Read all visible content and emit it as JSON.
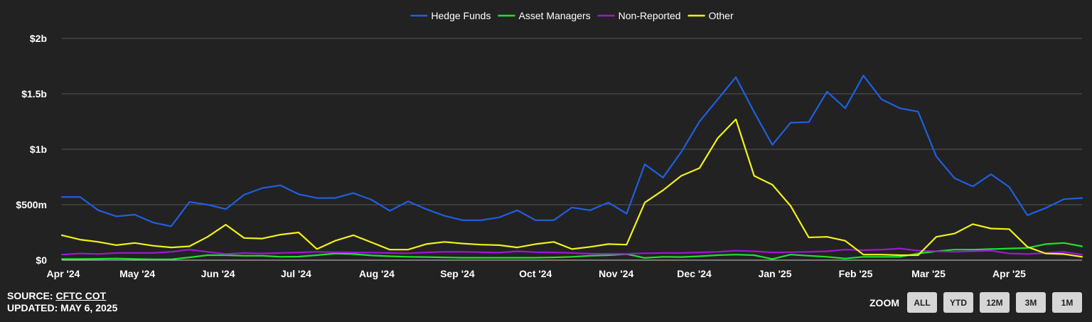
{
  "source": {
    "label": "SOURCE: ",
    "link_text": "CFTC COT",
    "updated": "UPDATED: MAY 6, 2025"
  },
  "zoom": {
    "label": "ZOOM",
    "buttons": [
      "ALL",
      "YTD",
      "12M",
      "3M",
      "1M"
    ]
  },
  "chart_data": {
    "type": "line",
    "title": "",
    "xlabel": "",
    "ylabel": "",
    "legend_position": "top-center",
    "grid": true,
    "x_range": [
      "2024-04-02",
      "2025-04-29"
    ],
    "ylim": [
      0,
      2000000000
    ],
    "y_ticks": [
      {
        "value": 0,
        "label": "$0"
      },
      {
        "value": 500000000,
        "label": "$500m"
      },
      {
        "value": 1000000000,
        "label": "$1b"
      },
      {
        "value": 1500000000,
        "label": "$1.5b"
      },
      {
        "value": 2000000000,
        "label": "$2b"
      }
    ],
    "x_ticks": [
      {
        "date": "2024-04-01",
        "label": "Apr '24"
      },
      {
        "date": "2024-05-01",
        "label": "May '24"
      },
      {
        "date": "2024-06-01",
        "label": "Jun '24"
      },
      {
        "date": "2024-07-01",
        "label": "Jul '24"
      },
      {
        "date": "2024-08-01",
        "label": "Aug '24"
      },
      {
        "date": "2024-09-01",
        "label": "Sep '24"
      },
      {
        "date": "2024-10-01",
        "label": "Oct '24"
      },
      {
        "date": "2024-11-01",
        "label": "Nov '24"
      },
      {
        "date": "2024-12-01",
        "label": "Dec '24"
      },
      {
        "date": "2025-01-01",
        "label": "Jan '25"
      },
      {
        "date": "2025-02-01",
        "label": "Feb '25"
      },
      {
        "date": "2025-03-01",
        "label": "Mar '25"
      },
      {
        "date": "2025-04-01",
        "label": "Apr '25"
      }
    ],
    "x": [
      "2024-04-02",
      "2024-04-09",
      "2024-04-16",
      "2024-04-23",
      "2024-04-30",
      "2024-05-07",
      "2024-05-14",
      "2024-05-21",
      "2024-05-28",
      "2024-06-04",
      "2024-06-11",
      "2024-06-18",
      "2024-06-25",
      "2024-07-02",
      "2024-07-09",
      "2024-07-16",
      "2024-07-23",
      "2024-07-30",
      "2024-08-06",
      "2024-08-13",
      "2024-08-20",
      "2024-08-27",
      "2024-09-03",
      "2024-09-10",
      "2024-09-17",
      "2024-09-24",
      "2024-10-01",
      "2024-10-08",
      "2024-10-15",
      "2024-10-22",
      "2024-10-29",
      "2024-11-05",
      "2024-11-12",
      "2024-11-19",
      "2024-11-26",
      "2024-12-03",
      "2024-12-10",
      "2024-12-17",
      "2024-12-24",
      "2024-12-31",
      "2025-01-07",
      "2025-01-14",
      "2025-01-21",
      "2025-01-28",
      "2025-02-04",
      "2025-02-11",
      "2025-02-18",
      "2025-02-25",
      "2025-03-04",
      "2025-03-11",
      "2025-03-18",
      "2025-03-25",
      "2025-04-01",
      "2025-04-08",
      "2025-04-15",
      "2025-04-22",
      "2025-04-29"
    ],
    "series": [
      {
        "name": "Hedge Funds",
        "color": "#1f5fe0",
        "values": [
          570000000,
          570000000,
          450000000,
          395000000,
          410000000,
          340000000,
          305000000,
          525000000,
          500000000,
          460000000,
          590000000,
          650000000,
          675000000,
          595000000,
          560000000,
          560000000,
          605000000,
          545000000,
          445000000,
          530000000,
          460000000,
          400000000,
          360000000,
          360000000,
          385000000,
          450000000,
          360000000,
          360000000,
          475000000,
          450000000,
          520000000,
          420000000,
          865000000,
          745000000,
          975000000,
          1250000000,
          1450000000,
          1650000000,
          1335000000,
          1040000000,
          1240000000,
          1245000000,
          1520000000,
          1370000000,
          1665000000,
          1450000000,
          1370000000,
          1340000000,
          935000000,
          740000000,
          665000000,
          775000000,
          660000000,
          405000000,
          470000000,
          550000000,
          560000000
        ]
      },
      {
        "name": "Asset Managers",
        "color": "#21e02c",
        "values": [
          10000000,
          10000000,
          12000000,
          15000000,
          10000000,
          8000000,
          8000000,
          25000000,
          45000000,
          45000000,
          40000000,
          40000000,
          30000000,
          32000000,
          45000000,
          60000000,
          55000000,
          42000000,
          35000000,
          30000000,
          28000000,
          25000000,
          22000000,
          22000000,
          22000000,
          22000000,
          22000000,
          25000000,
          30000000,
          40000000,
          45000000,
          55000000,
          20000000,
          30000000,
          28000000,
          35000000,
          45000000,
          50000000,
          45000000,
          10000000,
          50000000,
          40000000,
          30000000,
          15000000,
          30000000,
          30000000,
          30000000,
          60000000,
          80000000,
          95000000,
          95000000,
          100000000,
          105000000,
          110000000,
          145000000,
          155000000,
          125000000
        ]
      },
      {
        "name": "Non-Reported",
        "color": "#9f16d8",
        "values": [
          50000000,
          60000000,
          55000000,
          65000000,
          65000000,
          65000000,
          75000000,
          95000000,
          75000000,
          55000000,
          65000000,
          60000000,
          65000000,
          70000000,
          75000000,
          72000000,
          70000000,
          68000000,
          65000000,
          62000000,
          70000000,
          75000000,
          75000000,
          72000000,
          68000000,
          80000000,
          72000000,
          70000000,
          65000000,
          58000000,
          58000000,
          58000000,
          62000000,
          65000000,
          65000000,
          70000000,
          75000000,
          85000000,
          80000000,
          70000000,
          72000000,
          75000000,
          80000000,
          95000000,
          90000000,
          95000000,
          105000000,
          85000000,
          80000000,
          75000000,
          80000000,
          85000000,
          60000000,
          55000000,
          65000000,
          75000000,
          50000000
        ]
      },
      {
        "name": "Other",
        "color": "#f0f21a",
        "values": [
          225000000,
          185000000,
          165000000,
          135000000,
          155000000,
          130000000,
          115000000,
          125000000,
          210000000,
          320000000,
          200000000,
          195000000,
          230000000,
          250000000,
          100000000,
          175000000,
          225000000,
          160000000,
          95000000,
          95000000,
          145000000,
          165000000,
          150000000,
          140000000,
          135000000,
          115000000,
          145000000,
          165000000,
          100000000,
          120000000,
          145000000,
          140000000,
          520000000,
          630000000,
          760000000,
          830000000,
          1100000000,
          1270000000,
          760000000,
          680000000,
          490000000,
          205000000,
          210000000,
          175000000,
          50000000,
          50000000,
          45000000,
          45000000,
          210000000,
          240000000,
          325000000,
          285000000,
          280000000,
          120000000,
          60000000,
          55000000,
          30000000
        ]
      }
    ]
  }
}
